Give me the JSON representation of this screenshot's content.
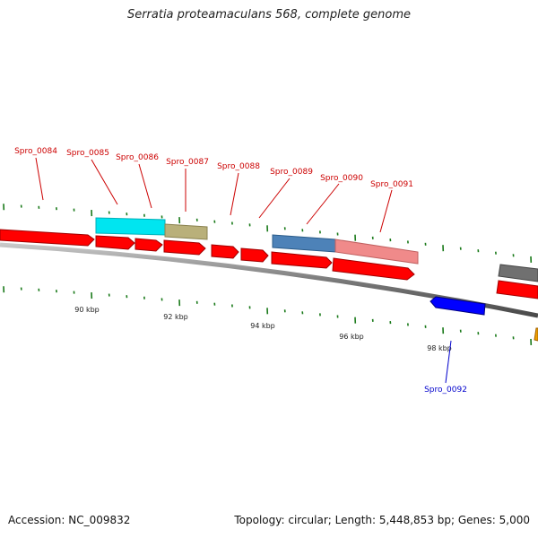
{
  "title": "Serratia proteamaculans 568, complete genome",
  "footer": {
    "accession": "Accession: NC_009832",
    "summary": "Topology: circular; Length: 5,448,853 bp; Genes: 5,000"
  },
  "colors": {
    "forward_gene": "#ff0000",
    "reverse_gene": "#0000ff",
    "tick": "#1a7a1a",
    "backbone": "#888888",
    "forward_label": "#cc0000",
    "reverse_label": "#0000cc"
  },
  "scale_labels": [
    "90 kbp",
    "92 kbp",
    "94 kbp",
    "96 kbp",
    "98 kbp"
  ],
  "gene_labels": [
    {
      "name": "Spro_0084",
      "strand": "forward"
    },
    {
      "name": "Spro_0085",
      "strand": "forward"
    },
    {
      "name": "Spro_0086",
      "strand": "forward"
    },
    {
      "name": "Spro_0087",
      "strand": "forward"
    },
    {
      "name": "Spro_0088",
      "strand": "forward"
    },
    {
      "name": "Spro_0089",
      "strand": "forward"
    },
    {
      "name": "Spro_0090",
      "strand": "forward"
    },
    {
      "name": "Spro_0091",
      "strand": "forward"
    },
    {
      "name": "Spro_0092",
      "strand": "reverse"
    }
  ],
  "feature_colors": [
    "#00e5f0",
    "#b9b07a",
    "#4d82b8",
    "#f08a8a",
    "#707070",
    "#f0a000"
  ]
}
